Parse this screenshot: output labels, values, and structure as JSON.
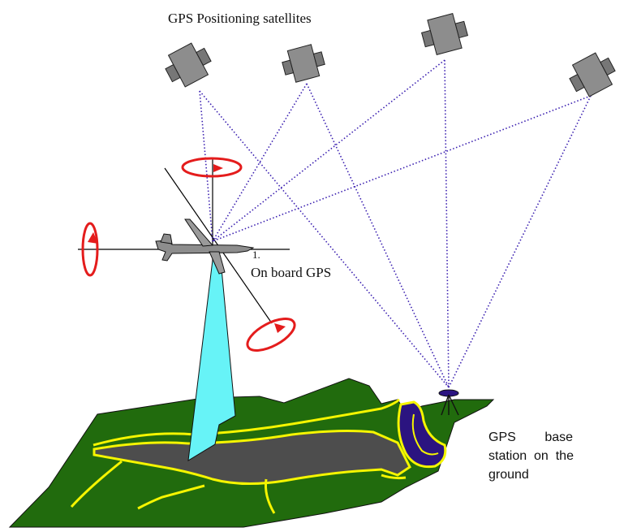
{
  "labels": {
    "satellites": "GPS Positioning satellites",
    "onboard_marker": "1.",
    "onboard": "On board GPS",
    "base_line1": "GPS        base",
    "base_line2": "station  on  the",
    "base_line3": "ground"
  },
  "colors": {
    "terrain": "#216b0d",
    "terrain_outline": "#f5f500",
    "road": "#4d4d4d",
    "river": "#2b1480",
    "scan_beam": "#67f3f7",
    "rotation_arrows": "#e41c1c",
    "signal_lines": "#3a1fb0",
    "satellite_body": "#8d8d8d"
  },
  "icons": {
    "satellite": "satellite-icon",
    "aircraft": "airplane-icon",
    "base_station": "tripod-antenna-icon"
  }
}
